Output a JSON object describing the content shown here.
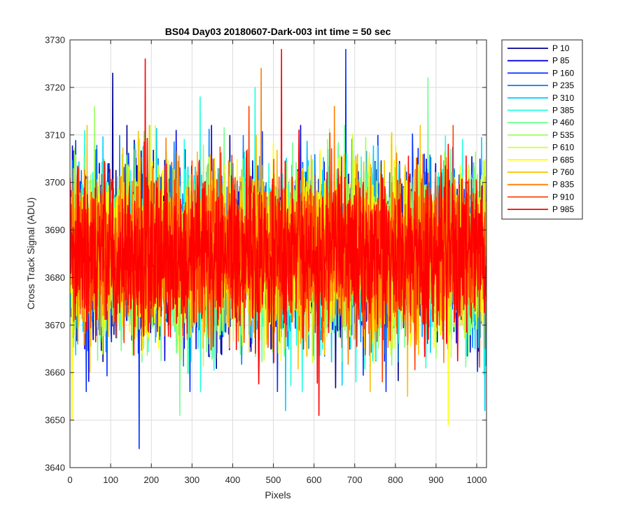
{
  "chart_data": {
    "type": "line",
    "title": "BS04 Day03 20180607-Dark-003 int time = 50 sec",
    "xlabel": "Pixels",
    "ylabel": "Cross Track Signal (ADU)",
    "xlim": [
      0,
      1024
    ],
    "ylim": [
      3640,
      3730
    ],
    "xticks": [
      0,
      100,
      200,
      300,
      400,
      500,
      600,
      700,
      800,
      900,
      1000
    ],
    "yticks": [
      3640,
      3650,
      3660,
      3670,
      3680,
      3690,
      3700,
      3710,
      3720,
      3730
    ],
    "grid": true,
    "legend_position": "outside-top-right",
    "n_points": 1024,
    "series": [
      {
        "name": "P 10",
        "color": "#00008F",
        "mean": 3685,
        "noise": 8.5,
        "spikes": [
          [
            105,
            3723
          ],
          [
            140,
            3712
          ]
        ]
      },
      {
        "name": "P 85",
        "color": "#0000DF",
        "mean": 3685,
        "noise": 8.5,
        "spikes": [
          [
            678,
            3710
          ],
          [
            790,
            3708
          ]
        ]
      },
      {
        "name": "P 160",
        "color": "#0030FF",
        "mean": 3685,
        "noise": 8.5,
        "spikes": [
          [
            170,
            3644
          ],
          [
            678,
            3728
          ]
        ]
      },
      {
        "name": "P 235",
        "color": "#0080FF",
        "mean": 3685,
        "noise": 8.5,
        "spikes": [
          [
            500,
            3662
          ]
        ]
      },
      {
        "name": "P 310",
        "color": "#00CFFF",
        "mean": 3685,
        "noise": 8.5,
        "spikes": [
          [
            1020,
            3652
          ],
          [
            530,
            3652
          ]
        ]
      },
      {
        "name": "P 385",
        "color": "#20FFDF",
        "mean": 3685,
        "noise": 8.5,
        "spikes": [
          [
            320,
            3718
          ],
          [
            455,
            3720
          ]
        ]
      },
      {
        "name": "P 460",
        "color": "#70FF8F",
        "mean": 3685,
        "noise": 8.5,
        "spikes": [
          [
            880,
            3722
          ],
          [
            270,
            3651
          ]
        ]
      },
      {
        "name": "P 535",
        "color": "#9FFF60",
        "mean": 3685,
        "noise": 8.5,
        "spikes": [
          [
            60,
            3716
          ]
        ]
      },
      {
        "name": "P 610",
        "color": "#CFFF30",
        "mean": 3685,
        "noise": 8.5,
        "spikes": [
          [
            210,
            3712
          ]
        ]
      },
      {
        "name": "P 685",
        "color": "#FFFF00",
        "mean": 3685,
        "noise": 8.5,
        "spikes": [
          [
            930,
            3649
          ],
          [
            5,
            3650
          ]
        ]
      },
      {
        "name": "P 760",
        "color": "#FFBF00",
        "mean": 3685,
        "noise": 8.5,
        "spikes": [
          [
            830,
            3655
          ]
        ]
      },
      {
        "name": "P 835",
        "color": "#FF7F00",
        "mean": 3685,
        "noise": 8.5,
        "spikes": [
          [
            470,
            3724
          ],
          [
            650,
            3716
          ]
        ]
      },
      {
        "name": "P 910",
        "color": "#FF4000",
        "mean": 3685,
        "noise": 8.5,
        "spikes": [
          [
            440,
            3716
          ]
        ]
      },
      {
        "name": "P 985",
        "color": "#FF0000",
        "mean": 3685,
        "noise": 8.5,
        "spikes": [
          [
            185,
            3726
          ],
          [
            520,
            3728
          ],
          [
            612,
            3651
          ]
        ]
      }
    ]
  }
}
